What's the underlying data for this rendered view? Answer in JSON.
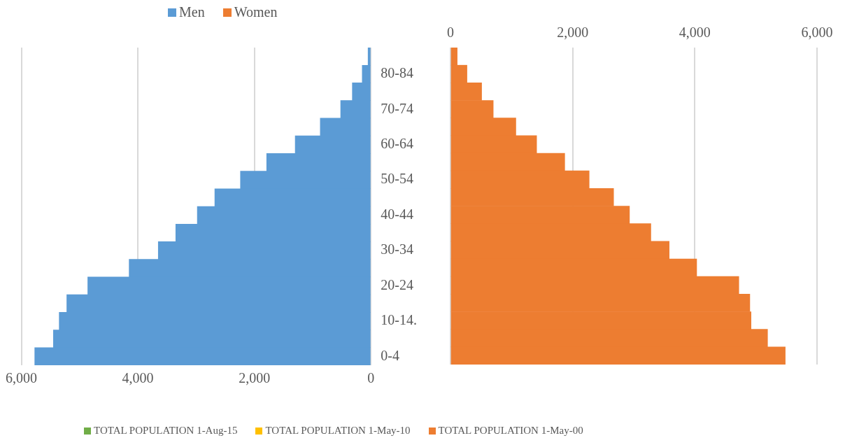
{
  "chart_data": [
    {
      "type": "bar",
      "orientation": "horizontal",
      "categories": [
        null,
        "80-84",
        null,
        "70-74",
        null,
        "60-64",
        null,
        "50-54",
        null,
        "40-44",
        null,
        "30-34",
        null,
        "20-24",
        null,
        "10-14.",
        null,
        "0-4"
      ],
      "series": [
        {
          "name": "Men",
          "color": "#5b9bd5",
          "values": [
            50,
            150,
            320,
            520,
            870,
            1300,
            1790,
            2240,
            2680,
            2980,
            3350,
            3650,
            4150,
            4860,
            5220,
            5350,
            5450,
            5770
          ]
        },
        {
          "name": "Women",
          "color": "#ed7d31",
          "values": [
            null,
            null,
            null,
            null,
            null,
            null,
            null,
            null,
            null,
            null,
            null,
            null,
            null,
            null,
            null,
            null,
            null,
            null
          ]
        }
      ],
      "xlim": [
        6000,
        0
      ],
      "xticks": [
        {
          "value": 6000,
          "label": "6,000"
        },
        {
          "value": 4000,
          "label": "4,000"
        },
        {
          "value": 2000,
          "label": "2,000"
        },
        0
      ],
      "stacked": true,
      "grid": "x",
      "legend": "top"
    },
    {
      "type": "bar",
      "orientation": "horizontal",
      "categories": [
        null,
        null,
        null,
        null,
        null,
        null,
        null,
        null,
        null,
        null,
        null,
        null,
        null,
        null,
        null,
        null,
        null,
        null
      ],
      "series": [
        {
          "name": "TOTAL POPULATION 1-Aug-15",
          "color": "#70ad47",
          "values": [
            null,
            null,
            null,
            null,
            null,
            null,
            null,
            null,
            null,
            null,
            null,
            null,
            null,
            null,
            null,
            null,
            null,
            null
          ]
        },
        {
          "name": "TOTAL POPULATION 1-May-10",
          "color": "#ffc000",
          "values": [
            null,
            null,
            null,
            null,
            null,
            null,
            null,
            null,
            null,
            null,
            null,
            null,
            null,
            null,
            null,
            null,
            null,
            null
          ]
        },
        {
          "name": "TOTAL POPULATION 1-May-00",
          "color": "#ed7d31",
          "values": [
            110,
            270,
            510,
            700,
            1070,
            1410,
            1870,
            2270,
            2670,
            2930,
            3280,
            3580,
            4030,
            4720,
            4900,
            4920,
            5190,
            5480
          ]
        }
      ],
      "xlim": [
        0,
        6000
      ],
      "xticks": [
        0,
        {
          "value": 2000,
          "label": "2,000"
        },
        {
          "value": 4000,
          "label": "4,000"
        },
        {
          "value": 6000,
          "label": "6,000"
        }
      ],
      "stacked": true,
      "grid": "x",
      "legend": "bottom",
      "tick_labels": "x"
    }
  ]
}
